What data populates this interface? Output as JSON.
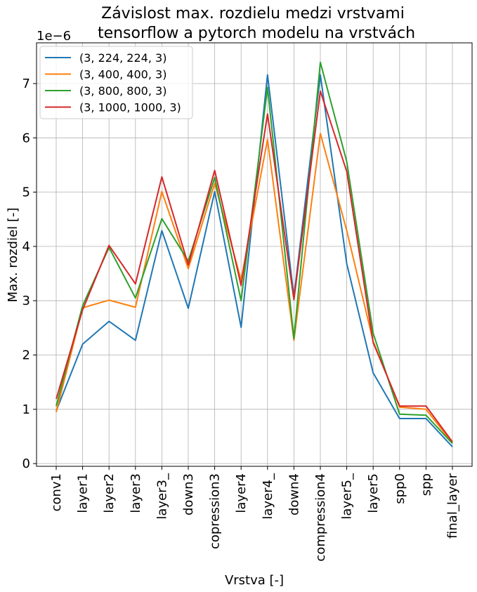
{
  "chart_data": {
    "type": "line",
    "title_line1": "Závislost max. rozdielu medzi vrstvami",
    "title_line2": "tensorflow a pytorch modelu na vrstvách",
    "xlabel": "Vrstva [-]",
    "ylabel": "Max. rozdiel [-]",
    "y_multiplier_label": "1e−6",
    "y_scale_note": "values in units of 1e-6",
    "ylim": [
      -0.05,
      7.75
    ],
    "yticks": [
      "0",
      "1",
      "2",
      "3",
      "4",
      "5",
      "6",
      "7"
    ],
    "grid": true,
    "legend_position": "top-left",
    "categories": [
      "conv1",
      "layer1",
      "layer2",
      "layer3",
      "layer3_",
      "down3",
      "copression3",
      "layer4",
      "layer4_",
      "down4",
      "compression4",
      "layer5_",
      "layer5",
      "spp0",
      "spp",
      "final_layer"
    ],
    "series": [
      {
        "name": "(3, 224, 224, 3)",
        "color": "#1f77b4",
        "values": [
          0.97,
          2.2,
          2.62,
          2.27,
          4.29,
          2.86,
          5.01,
          2.51,
          7.16,
          3.07,
          7.16,
          3.68,
          1.67,
          0.83,
          0.83,
          0.31
        ]
      },
      {
        "name": "(3, 400, 400, 3)",
        "color": "#ff7f0e",
        "values": [
          0.95,
          2.87,
          3.01,
          2.88,
          5.01,
          3.59,
          5.16,
          3.38,
          5.97,
          2.27,
          6.08,
          4.29,
          2.25,
          1.04,
          1.0,
          0.38
        ]
      },
      {
        "name": "(3, 800, 800, 3)",
        "color": "#2ca02c",
        "values": [
          1.06,
          2.91,
          3.98,
          3.05,
          4.51,
          3.73,
          5.27,
          3.0,
          6.93,
          2.3,
          7.39,
          5.56,
          2.4,
          0.91,
          0.89,
          0.37
        ]
      },
      {
        "name": "(3, 1000, 1000, 3)",
        "color": "#d62728",
        "values": [
          1.19,
          2.83,
          4.02,
          3.31,
          5.28,
          3.66,
          5.4,
          3.28,
          6.44,
          3.02,
          6.86,
          5.38,
          2.23,
          1.06,
          1.06,
          0.4
        ]
      }
    ]
  }
}
